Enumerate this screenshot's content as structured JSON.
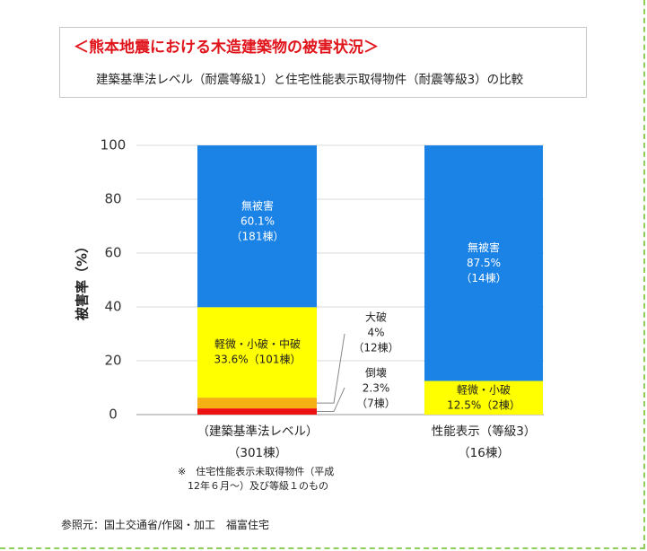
{
  "title": "＜熊本地震における木造建築物の被害状況＞",
  "subtitle": "建築基準法レベル（耐震等級1）と住宅性能表示取得物件（耐震等級3）の比較",
  "source": "参照元：国土交通省/作図・加工　福富住宅",
  "colors": {
    "title": "#e0141b",
    "no_damage": "#1b82e6",
    "minor": "#ffff00",
    "major": "#f5b014",
    "collapse": "#ee1111"
  },
  "chart_data": {
    "type": "bar",
    "stacked": true,
    "ylabel": "被害率（%）",
    "ylim": [
      0,
      100
    ],
    "yticks": [
      0,
      20,
      40,
      60,
      80,
      100
    ],
    "grid": true,
    "bars": [
      {
        "category": "（建築基準法レベル）",
        "count_label": "（301棟）",
        "footnote": [
          "※　住宅性能表示未取得物件（平成",
          "12年６月～）及び等級１のもの"
        ],
        "segments": [
          {
            "key": "collapse",
            "value": 2.3,
            "lines": [
              "倒壊",
              "2.3%",
              "（7棟）"
            ]
          },
          {
            "key": "major",
            "value": 4.0,
            "lines": [
              "大破",
              "4%",
              "（12棟）"
            ]
          },
          {
            "key": "minor",
            "value": 33.6,
            "lines": [
              "軽微・小破・中破",
              "33.6%（101棟）"
            ]
          },
          {
            "key": "no_damage",
            "value": 60.1,
            "lines": [
              "無被害",
              "60.1%",
              "（181棟）"
            ]
          }
        ]
      },
      {
        "category": "性能表示（等級3）",
        "count_label": "（16棟）",
        "footnote": [],
        "segments": [
          {
            "key": "minor",
            "value": 12.5,
            "lines": [
              "軽微・小破",
              "12.5%（2棟）"
            ]
          },
          {
            "key": "no_damage",
            "value": 87.5,
            "lines": [
              "無被害",
              "87.5%",
              "（14棟）"
            ]
          }
        ]
      }
    ]
  }
}
